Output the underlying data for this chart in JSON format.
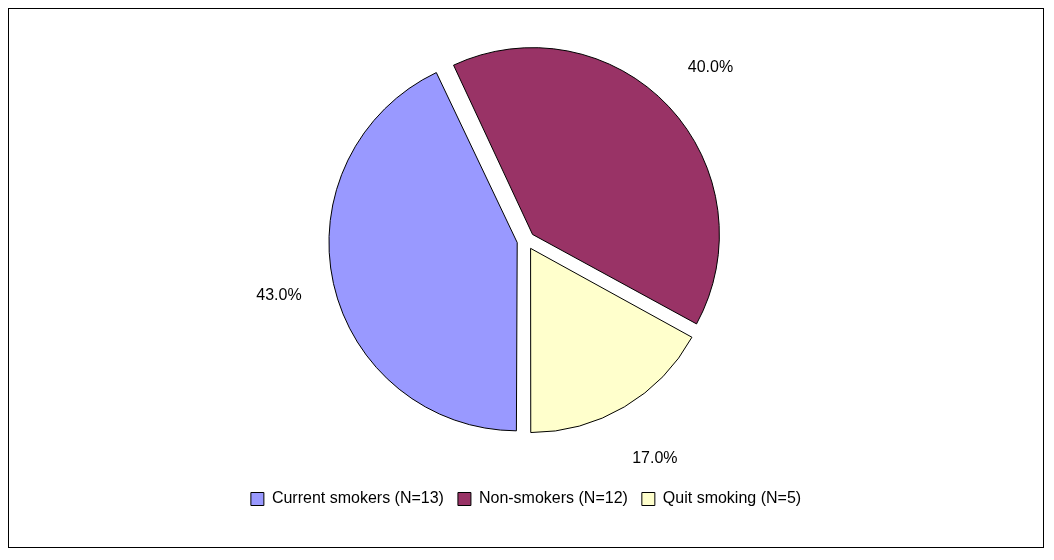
{
  "chart_data": {
    "type": "pie",
    "categories": [
      "Current smokers (N=13)",
      "Non-smokers (N=12)",
      "Quit smoking (N=5)"
    ],
    "values": [
      43,
      40,
      17
    ],
    "colors": [
      "#9999ff",
      "#993366",
      "#ffffcc"
    ],
    "value_labels": [
      "43.0%",
      "40.0%",
      "17.0%"
    ],
    "legend": "bottom"
  }
}
